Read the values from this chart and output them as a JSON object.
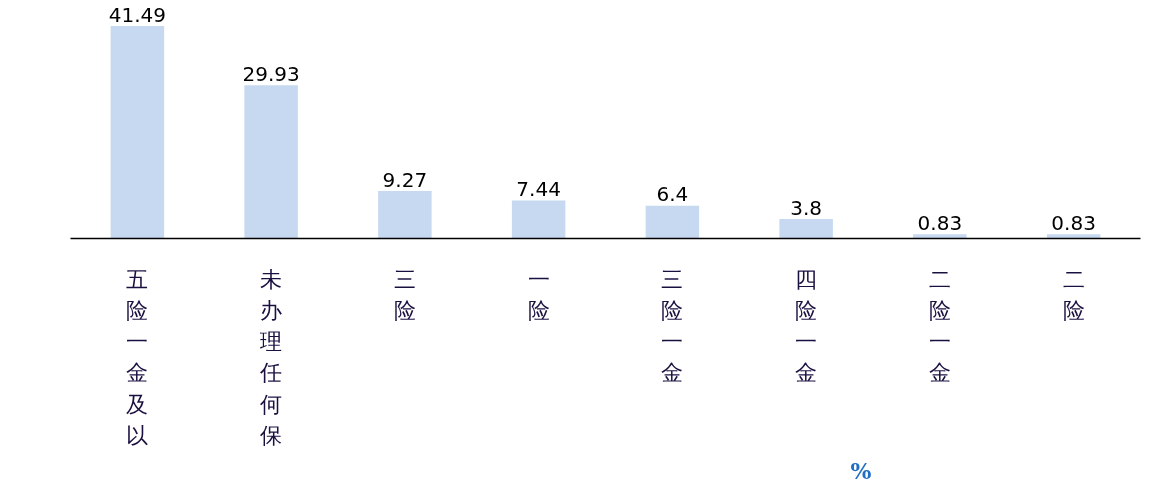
{
  "chart_data": {
    "type": "bar",
    "categories": [
      "五险一金及以",
      "未办理任何保",
      "三险",
      "一险",
      "三险一金",
      "四险一金",
      "二险一金",
      "二险"
    ],
    "values": [
      41.49,
      29.93,
      9.27,
      7.44,
      6.4,
      3.8,
      0.83,
      0.83
    ],
    "color": "#c6d9f0",
    "data_labels": true,
    "annotations": [
      "%"
    ]
  }
}
